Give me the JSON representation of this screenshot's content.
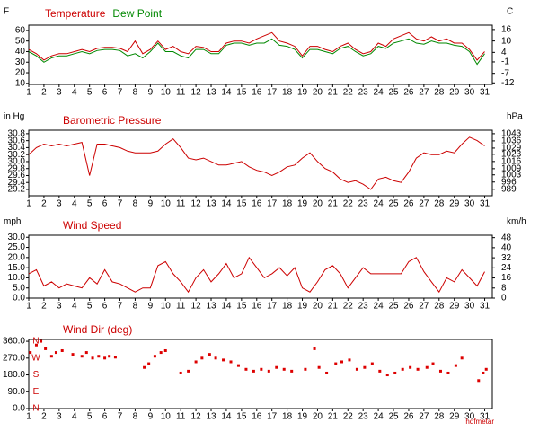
{
  "chart_data": [
    {
      "type": "line",
      "x": [
        1,
        1.5,
        2,
        2.5,
        3,
        3.5,
        4,
        4.5,
        5,
        5.5,
        6,
        6.5,
        7,
        7.5,
        8,
        8.5,
        9,
        9.5,
        10,
        10.5,
        11,
        11.5,
        12,
        12.5,
        13,
        13.5,
        14,
        14.5,
        15,
        15.5,
        16,
        16.5,
        17,
        17.5,
        18,
        18.5,
        19,
        19.5,
        20,
        20.5,
        21,
        21.5,
        22,
        22.5,
        23,
        23.5,
        24,
        24.5,
        25,
        25.5,
        26,
        26.5,
        27,
        27.5,
        28,
        28.5,
        29,
        29.5,
        30,
        30.5,
        31
      ],
      "series": [
        {
          "name": "Temperature",
          "color": "#cc0000",
          "values": [
            42,
            38,
            32,
            36,
            38,
            38,
            40,
            42,
            40,
            43,
            44,
            44,
            43,
            40,
            50,
            38,
            42,
            50,
            42,
            45,
            40,
            38,
            45,
            44,
            40,
            40,
            48,
            50,
            50,
            48,
            52,
            55,
            58,
            50,
            48,
            45,
            36,
            45,
            45,
            42,
            40,
            45,
            48,
            42,
            38,
            40,
            48,
            45,
            52,
            55,
            58,
            52,
            50,
            54,
            50,
            52,
            48,
            48,
            42,
            32,
            40
          ]
        },
        {
          "name": "Dew Point",
          "color": "#008800",
          "values": [
            40,
            36,
            30,
            34,
            36,
            36,
            38,
            40,
            38,
            41,
            42,
            42,
            41,
            36,
            38,
            34,
            40,
            48,
            40,
            40,
            36,
            34,
            42,
            42,
            38,
            38,
            46,
            48,
            48,
            46,
            48,
            48,
            52,
            46,
            45,
            42,
            34,
            42,
            42,
            40,
            38,
            43,
            45,
            40,
            36,
            38,
            45,
            43,
            48,
            50,
            52,
            48,
            47,
            50,
            48,
            48,
            46,
            45,
            40,
            28,
            38
          ]
        }
      ],
      "xlim": [
        1,
        31.5
      ],
      "xticks": [
        1,
        2,
        3,
        4,
        5,
        6,
        7,
        8,
        9,
        10,
        11,
        12,
        13,
        14,
        15,
        16,
        17,
        18,
        19,
        20,
        21,
        22,
        23,
        24,
        25,
        26,
        27,
        28,
        29,
        30,
        31
      ],
      "y_label": "F",
      "ylim": [
        9,
        65
      ],
      "yticks": [
        60,
        50,
        40,
        30,
        20,
        10
      ],
      "y2_label": "C",
      "y2lim": [
        -12.8,
        18.3
      ],
      "y2ticks": [
        16,
        10,
        4,
        -1,
        -7,
        -12
      ]
    },
    {
      "type": "line",
      "title": "Barometric Pressure",
      "color": "#cc0000",
      "x": [
        1,
        1.5,
        2,
        2.5,
        3,
        3.5,
        4,
        4.5,
        5,
        5.5,
        6,
        6.5,
        7,
        7.5,
        8,
        8.5,
        9,
        9.5,
        10,
        10.5,
        11,
        11.5,
        12,
        12.5,
        13,
        13.5,
        14,
        14.5,
        15,
        15.5,
        16,
        16.5,
        17,
        17.5,
        18,
        18.5,
        19,
        19.5,
        20,
        20.5,
        21,
        21.5,
        22,
        22.5,
        23,
        23.5,
        24,
        24.5,
        25,
        25.5,
        26,
        26.5,
        27,
        27.5,
        28,
        28.5,
        29,
        29.5,
        30,
        30.5,
        31
      ],
      "values": [
        30.2,
        30.4,
        30.5,
        30.45,
        30.5,
        30.45,
        30.5,
        30.55,
        29.6,
        30.5,
        30.5,
        30.45,
        30.4,
        30.3,
        30.25,
        30.25,
        30.25,
        30.3,
        30.5,
        30.65,
        30.4,
        30.1,
        30.05,
        30.1,
        30.0,
        29.9,
        29.9,
        29.95,
        30.0,
        29.85,
        29.75,
        29.7,
        29.6,
        29.7,
        29.85,
        29.9,
        30.1,
        30.25,
        30.0,
        29.8,
        29.7,
        29.5,
        29.4,
        29.45,
        29.35,
        29.2,
        29.5,
        29.55,
        29.45,
        29.4,
        29.7,
        30.1,
        30.25,
        30.2,
        30.2,
        30.3,
        30.25,
        30.5,
        30.7,
        30.6,
        30.45
      ],
      "xlim": [
        1,
        31.5
      ],
      "xticks": [
        1,
        2,
        3,
        4,
        5,
        6,
        7,
        8,
        9,
        10,
        11,
        12,
        13,
        14,
        15,
        16,
        17,
        18,
        19,
        20,
        21,
        22,
        23,
        24,
        25,
        26,
        27,
        28,
        29,
        30,
        31
      ],
      "y_label": "in Hg",
      "ylim": [
        29.02,
        30.9
      ],
      "yticks": [
        30.8,
        30.6,
        30.4,
        30.2,
        {
          "value": 30,
          "label": "30.0"
        },
        29.8,
        29.6,
        29.4,
        29.2
      ],
      "y2_label": "hPa",
      "y2lim": [
        982.7,
        1046.4
      ],
      "y2ticks": [
        1043,
        1036,
        1029,
        1023,
        1016,
        1009,
        1003,
        996,
        989
      ]
    },
    {
      "type": "line",
      "title": "Wind Speed",
      "color": "#cc0000",
      "x": [
        1,
        1.5,
        2,
        2.5,
        3,
        3.5,
        4,
        4.5,
        5,
        5.5,
        6,
        6.5,
        7,
        7.5,
        8,
        8.5,
        9,
        9.5,
        10,
        10.5,
        11,
        11.5,
        12,
        12.5,
        13,
        13.5,
        14,
        14.5,
        15,
        15.5,
        16,
        16.5,
        17,
        17.5,
        18,
        18.5,
        19,
        19.5,
        20,
        20.5,
        21,
        21.5,
        22,
        22.5,
        23,
        23.5,
        24,
        24.5,
        25,
        25.5,
        26,
        26.5,
        27,
        27.5,
        28,
        28.5,
        29,
        29.5,
        30,
        30.5,
        31
      ],
      "values": [
        12,
        14,
        6,
        8,
        5,
        7,
        6,
        5,
        10,
        7,
        14,
        8,
        7,
        5,
        3,
        5,
        5,
        16,
        18,
        12,
        8,
        3,
        10,
        14,
        8,
        12,
        17,
        10,
        12,
        20,
        15,
        10,
        12,
        15,
        11,
        15,
        5,
        3,
        8,
        14,
        16,
        12,
        5,
        10,
        15,
        12,
        12,
        12,
        12,
        12,
        18,
        20,
        13,
        8,
        3,
        10,
        8,
        14,
        10,
        6,
        13
      ],
      "xlim": [
        1,
        31.5
      ],
      "xticks": [
        1,
        2,
        3,
        4,
        5,
        6,
        7,
        8,
        9,
        10,
        11,
        12,
        13,
        14,
        15,
        16,
        17,
        18,
        19,
        20,
        21,
        22,
        23,
        24,
        25,
        26,
        27,
        28,
        29,
        30,
        31
      ],
      "y_label": "mph",
      "ylim": [
        0,
        31
      ],
      "yticks": [
        {
          "value": 30,
          "label": "30.0"
        },
        {
          "value": 25,
          "label": "25.0"
        },
        {
          "value": 20,
          "label": "20.0"
        },
        {
          "value": 15,
          "label": "15.0"
        },
        {
          "value": 10,
          "label": "10.0"
        },
        {
          "value": 5,
          "label": "5.0"
        },
        {
          "value": 0,
          "label": "0.0"
        }
      ],
      "y2_label": "km/h",
      "y2lim": [
        0,
        49.9
      ],
      "y2ticks": [
        48,
        40,
        32,
        24,
        16,
        8,
        0
      ]
    },
    {
      "type": "scatter",
      "title": "Wind Dir (deg)",
      "color": "#dd0000",
      "x": [
        1.1,
        1.5,
        1.8,
        2.1,
        2.5,
        2.8,
        3.2,
        3.9,
        4.5,
        4.8,
        5.2,
        5.6,
        6.0,
        6.3,
        6.7,
        8.6,
        8.9,
        9.3,
        9.7,
        10.0,
        11.0,
        11.5,
        12.0,
        12.4,
        12.9,
        13.3,
        13.8,
        14.3,
        14.8,
        15.3,
        15.8,
        16.3,
        16.8,
        17.3,
        17.8,
        18.3,
        19.2,
        19.8,
        20.1,
        20.6,
        21.2,
        21.6,
        22.1,
        22.6,
        23.1,
        23.6,
        24.1,
        24.6,
        25.1,
        25.6,
        26.1,
        26.6,
        27.2,
        27.6,
        28.1,
        28.6,
        29.1,
        29.5,
        30.6,
        30.9,
        31.1
      ],
      "values": [
        300,
        340,
        360,
        320,
        280,
        300,
        310,
        290,
        280,
        300,
        270,
        280,
        270,
        280,
        275,
        220,
        240,
        280,
        300,
        310,
        190,
        200,
        250,
        270,
        290,
        270,
        260,
        250,
        230,
        210,
        200,
        210,
        200,
        220,
        210,
        200,
        210,
        320,
        220,
        190,
        240,
        250,
        260,
        210,
        220,
        240,
        200,
        180,
        190,
        210,
        220,
        210,
        220,
        240,
        200,
        190,
        230,
        270,
        150,
        190,
        210
      ],
      "xlim": [
        1,
        31.5
      ],
      "xticks": [
        1,
        2,
        3,
        4,
        5,
        6,
        7,
        8,
        9,
        10,
        11,
        12,
        13,
        14,
        15,
        16,
        17,
        18,
        19,
        20,
        21,
        22,
        23,
        24,
        25,
        26,
        27,
        28,
        29,
        30,
        31
      ],
      "ylim": [
        0,
        370
      ],
      "yticks": [
        {
          "value": 360,
          "label": "360.0"
        },
        {
          "value": 270,
          "label": "270.0"
        },
        {
          "value": 180,
          "label": "180.0"
        },
        {
          "value": 90,
          "label": "90.0"
        },
        {
          "value": 0,
          "label": "0.0"
        }
      ],
      "y2lim": [
        0,
        370
      ],
      "y2ticks": [
        {
          "value": 360,
          "label": "N"
        },
        {
          "value": 270,
          "label": "W"
        },
        {
          "value": 180,
          "label": "S"
        },
        {
          "value": 90,
          "label": "E"
        },
        {
          "value": 0,
          "label": "N"
        }
      ],
      "watermark": "hdfmetar"
    }
  ]
}
